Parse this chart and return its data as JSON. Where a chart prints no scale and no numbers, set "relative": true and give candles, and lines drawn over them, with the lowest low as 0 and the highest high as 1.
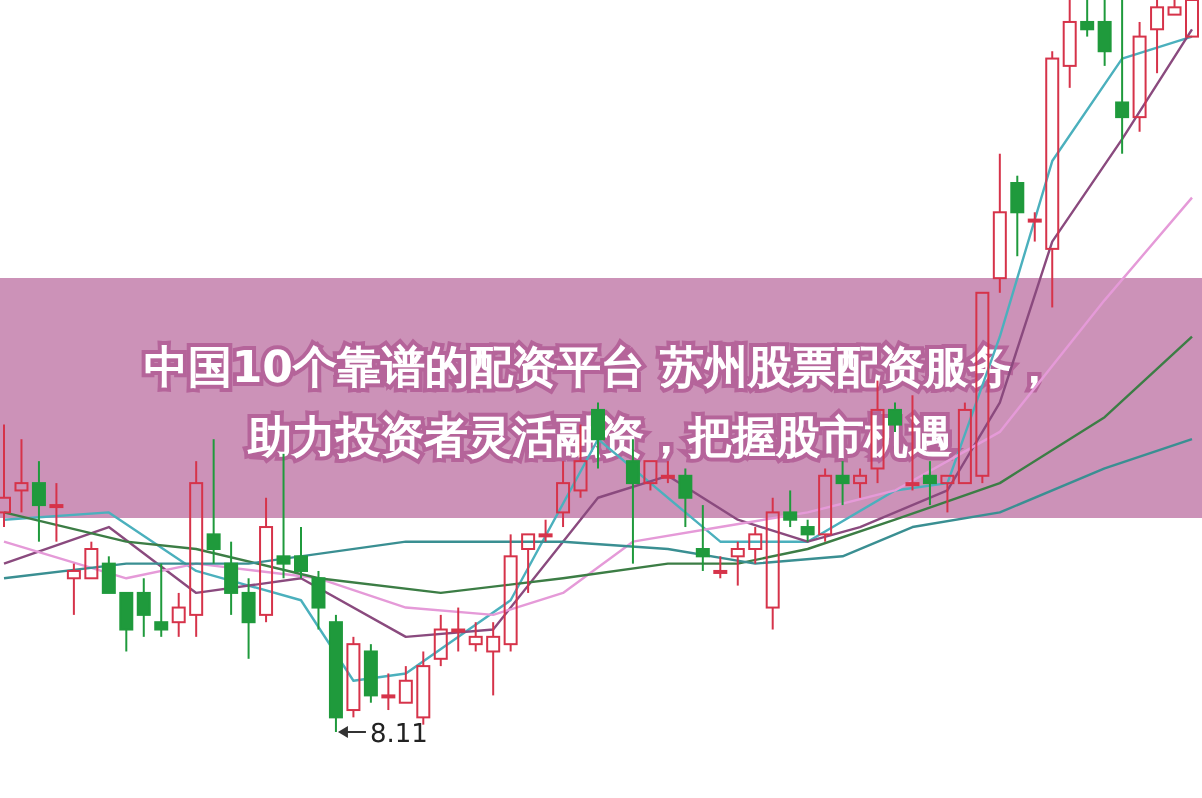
{
  "chart_data": {
    "type": "candlestick",
    "relative": true,
    "title": "中国10个靠谱的配资平台 苏州股票配资服务，",
    "subtitle": "助力投资者灵活融资，把握股市机遇",
    "categories": [
      null,
      null,
      null,
      null,
      null,
      null,
      null,
      null,
      null,
      null,
      null,
      null,
      null,
      null,
      null,
      null,
      null,
      null,
      null,
      null,
      null,
      null,
      null,
      null,
      null,
      null,
      null,
      null,
      null,
      null,
      null,
      null,
      null,
      null,
      null,
      null,
      null,
      null,
      null,
      null,
      null,
      null,
      null,
      null,
      null,
      null,
      null,
      null,
      null,
      null,
      null,
      null,
      null,
      null,
      null,
      null,
      null,
      null,
      null,
      null,
      null,
      null,
      null,
      null,
      null,
      null,
      null,
      null,
      null
    ],
    "ohlc": [
      [
        0.3,
        0.42,
        0.28,
        0.32
      ],
      [
        0.33,
        0.4,
        0.3,
        0.34
      ],
      [
        0.34,
        0.37,
        0.26,
        0.31
      ],
      [
        0.31,
        0.34,
        0.26,
        0.31
      ],
      [
        0.21,
        0.23,
        0.16,
        0.22
      ],
      [
        0.21,
        0.26,
        0.21,
        0.25
      ],
      [
        0.23,
        0.24,
        0.19,
        0.19
      ],
      [
        0.19,
        0.19,
        0.11,
        0.14
      ],
      [
        0.19,
        0.21,
        0.13,
        0.16
      ],
      [
        0.15,
        0.23,
        0.13,
        0.14
      ],
      [
        0.15,
        0.19,
        0.13,
        0.17
      ],
      [
        0.16,
        0.37,
        0.13,
        0.34
      ],
      [
        0.27,
        0.4,
        0.23,
        0.25
      ],
      [
        0.23,
        0.26,
        0.16,
        0.19
      ],
      [
        0.19,
        0.21,
        0.1,
        0.15
      ],
      [
        0.16,
        0.32,
        0.15,
        0.28
      ],
      [
        0.24,
        0.38,
        0.21,
        0.23
      ],
      [
        0.24,
        0.28,
        0.21,
        0.22
      ],
      [
        0.21,
        0.22,
        0.14,
        0.17
      ],
      [
        0.15,
        0.16,
        0,
        0.02
      ],
      [
        0.03,
        0.13,
        0.02,
        0.12
      ],
      [
        0.11,
        0.12,
        0.04,
        0.05
      ],
      [
        0.05,
        0.08,
        0.03,
        0.05
      ],
      [
        0.04,
        0.09,
        0.04,
        0.07
      ],
      [
        0.02,
        0.11,
        0.01,
        0.09
      ],
      [
        0.1,
        0.16,
        0.09,
        0.14
      ],
      [
        0.14,
        0.17,
        0.11,
        0.14
      ],
      [
        0.12,
        0.15,
        0.11,
        0.13
      ],
      [
        0.11,
        0.15,
        0.05,
        0.13
      ],
      [
        0.12,
        0.27,
        0.11,
        0.24
      ],
      [
        0.25,
        0.27,
        0.19,
        0.27
      ],
      [
        0.27,
        0.29,
        0.26,
        0.27
      ],
      [
        0.3,
        0.37,
        0.28,
        0.34
      ],
      [
        0.33,
        0.42,
        0.32,
        0.37
      ],
      [
        0.44,
        0.45,
        0.36,
        0.4
      ],
      null,
      [
        0.37,
        0.4,
        0.23,
        0.34
      ],
      [
        0.34,
        0.37,
        0.33,
        0.37
      ],
      [
        0.35,
        0.37,
        0.34,
        0.35
      ],
      [
        0.35,
        0.36,
        0.28,
        0.32
      ],
      [
        0.25,
        0.31,
        0.22,
        0.24
      ],
      [
        0.22,
        0.24,
        0.21,
        0.22
      ],
      [
        0.24,
        0.26,
        0.2,
        0.25
      ],
      [
        0.25,
        0.28,
        0.23,
        0.27
      ],
      [
        0.17,
        0.32,
        0.14,
        0.3
      ],
      [
        0.3,
        0.33,
        0.28,
        0.29
      ],
      [
        0.28,
        0.29,
        0.26,
        0.27
      ],
      [
        0.27,
        0.36,
        0.26,
        0.35
      ],
      [
        0.35,
        0.37,
        0.31,
        0.34
      ],
      [
        0.34,
        0.36,
        0.32,
        0.35
      ],
      [
        0.36,
        0.48,
        0.34,
        0.44
      ],
      [
        0.44,
        0.45,
        0.41,
        0.42
      ],
      [
        0.34,
        0.46,
        0.33,
        0.34
      ],
      [
        0.35,
        0.37,
        0.31,
        0.34
      ],
      [
        0.34,
        0.35,
        0.3,
        0.35
      ],
      [
        0.34,
        0.45,
        0.34,
        0.44
      ],
      [
        0.35,
        0.6,
        0.34,
        0.6
      ],
      [
        0.62,
        0.79,
        0.6,
        0.71
      ],
      [
        0.75,
        0.76,
        0.65,
        0.71
      ],
      [
        0.7,
        0.71,
        0.67,
        0.7
      ],
      [
        0.66,
        0.93,
        0.58,
        0.92
      ],
      [
        0.91,
        1,
        0.88,
        0.97
      ],
      [
        0.97,
        1,
        0.95,
        0.96
      ],
      [
        0.97,
        1,
        0.91,
        0.93
      ],
      [
        0.86,
        1,
        0.79,
        0.84
      ],
      [
        0.84,
        0.97,
        0.82,
        0.95
      ],
      [
        0.96,
        1,
        0.9,
        0.99
      ],
      [
        0.98,
        1,
        0.98,
        0.99
      ],
      [
        0.95,
        1,
        0.95,
        1
      ]
    ],
    "series": [
      {
        "type": "line",
        "color": "#4bb0bd",
        "values": [
          0.29,
          null,
          null,
          null,
          null,
          null,
          0.3,
          null,
          null,
          null,
          null,
          0.22,
          null,
          null,
          null,
          null,
          null,
          0.18,
          null,
          null,
          0.07,
          null,
          null,
          0.08,
          null,
          null,
          null,
          null,
          null,
          0.18,
          null,
          null,
          null,
          null,
          0.4,
          null,
          null,
          null,
          null,
          0.3,
          null,
          0.26,
          null,
          null,
          0.26,
          null,
          0.26,
          null,
          null,
          null,
          null,
          0.33,
          null,
          null,
          0.34,
          null,
          null,
          0.54,
          null,
          null,
          0.78,
          null,
          null,
          null,
          0.92,
          null,
          null,
          null,
          0.95
        ]
      },
      {
        "type": "line",
        "color": "#8a4a7e",
        "values": [
          0.23,
          null,
          null,
          null,
          null,
          null,
          0.28,
          null,
          null,
          null,
          null,
          0.19,
          null,
          null,
          null,
          null,
          null,
          0.21,
          null,
          null,
          null,
          null,
          null,
          0.13,
          null,
          null,
          null,
          null,
          0.14,
          null,
          null,
          null,
          null,
          null,
          0.32,
          null,
          null,
          null,
          0.35,
          null,
          null,
          null,
          0.29,
          null,
          null,
          null,
          0.26,
          null,
          null,
          0.28,
          null,
          null,
          null,
          null,
          0.33,
          null,
          null,
          0.45,
          null,
          null,
          0.67,
          null,
          null,
          null,
          0.81,
          null,
          null,
          null,
          0.96
        ]
      },
      {
        "type": "line",
        "color": "#e59ad8",
        "values": [
          0.26,
          null,
          null,
          null,
          null,
          null,
          null,
          0.21,
          null,
          null,
          null,
          0.23,
          null,
          null,
          null,
          null,
          null,
          null,
          0.21,
          null,
          null,
          null,
          null,
          0.17,
          null,
          null,
          null,
          null,
          0.16,
          null,
          null,
          null,
          0.19,
          null,
          null,
          null,
          0.26,
          null,
          null,
          null,
          null,
          0.28,
          null,
          null,
          null,
          null,
          0.3,
          null,
          null,
          null,
          null,
          0.33,
          null,
          null,
          null,
          null,
          null,
          0.41,
          null,
          null,
          null,
          null,
          null,
          0.59,
          null,
          null,
          null,
          null,
          0.73
        ]
      },
      {
        "type": "line",
        "color": "#3c7d45",
        "values": [
          0.3,
          null,
          null,
          null,
          null,
          null,
          null,
          0.26,
          null,
          null,
          null,
          0.25,
          null,
          null,
          null,
          null,
          null,
          null,
          0.21,
          null,
          null,
          null,
          null,
          null,
          null,
          0.19,
          null,
          null,
          null,
          null,
          null,
          null,
          0.21,
          null,
          null,
          null,
          null,
          null,
          0.23,
          null,
          null,
          null,
          0.23,
          null,
          null,
          null,
          0.25,
          null,
          null,
          null,
          null,
          0.29,
          null,
          null,
          null,
          null,
          null,
          0.34,
          null,
          null,
          null,
          null,
          null,
          0.43,
          null,
          null,
          null,
          null,
          0.54
        ]
      },
      {
        "type": "line",
        "color": "#3a8f92",
        "values": [
          0.21,
          null,
          null,
          null,
          null,
          null,
          null,
          0.23,
          null,
          null,
          null,
          null,
          null,
          null,
          0.23,
          null,
          null,
          null,
          null,
          null,
          null,
          null,
          null,
          0.26,
          null,
          null,
          null,
          null,
          null,
          null,
          null,
          null,
          0.26,
          null,
          null,
          null,
          null,
          null,
          0.25,
          null,
          null,
          null,
          null,
          0.23,
          null,
          null,
          null,
          null,
          0.24,
          null,
          null,
          null,
          0.28,
          null,
          null,
          null,
          null,
          0.3,
          null,
          null,
          null,
          null,
          null,
          0.36,
          null,
          null,
          null,
          null,
          0.4
        ]
      }
    ],
    "annotations": [
      "8.11"
    ]
  }
}
